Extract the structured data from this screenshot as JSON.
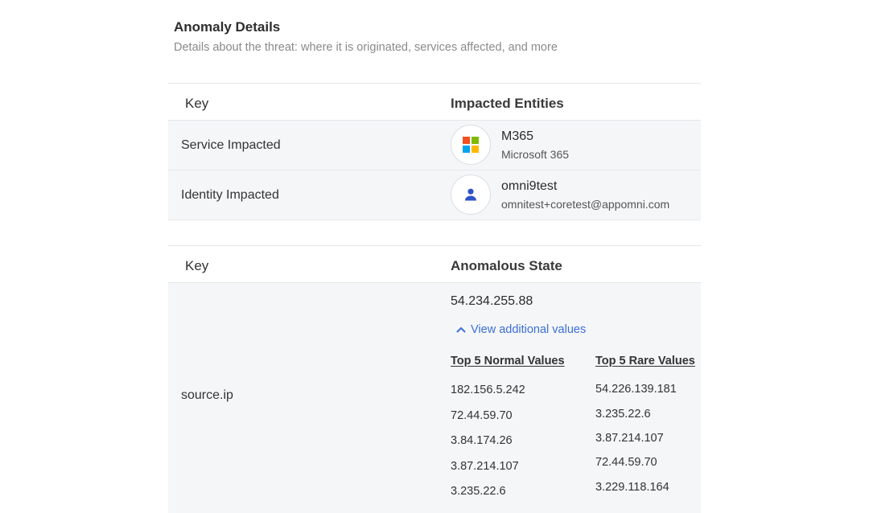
{
  "header": {
    "title": "Anomaly Details",
    "subtitle": "Details about the threat: where it is originated, services affected, and more"
  },
  "entities_table": {
    "col_key": "Key",
    "col_value": "Impacted Entities",
    "rows": [
      {
        "key": "Service Impacted",
        "name": "M365",
        "sub": "Microsoft 365",
        "icon": "microsoft-logo-icon"
      },
      {
        "key": "Identity Impacted",
        "name": "omni9test",
        "sub": "omnitest+coretest@appomni.com",
        "icon": "user-icon"
      }
    ]
  },
  "state_table": {
    "col_key": "Key",
    "col_value": "Anomalous State",
    "row": {
      "key": "source.ip",
      "value": "54.234.255.88",
      "toggle_label": "View additional values",
      "normal_header": "Top 5 Normal Values",
      "rare_header": "Top 5 Rare Values",
      "normal_values": [
        "182.156.5.242",
        "72.44.59.70",
        "3.84.174.26",
        "3.87.214.107",
        "3.235.22.6"
      ],
      "rare_values": [
        "54.226.139.181",
        "3.235.22.6",
        "3.87.214.107",
        "72.44.59.70",
        "3.229.118.164"
      ]
    }
  },
  "colors": {
    "accent": "#3a6fd8",
    "user_icon": "#2f53c7",
    "ms_red": "#f25022",
    "ms_green": "#7fba00",
    "ms_blue": "#00a4ef",
    "ms_yellow": "#ffb900"
  }
}
